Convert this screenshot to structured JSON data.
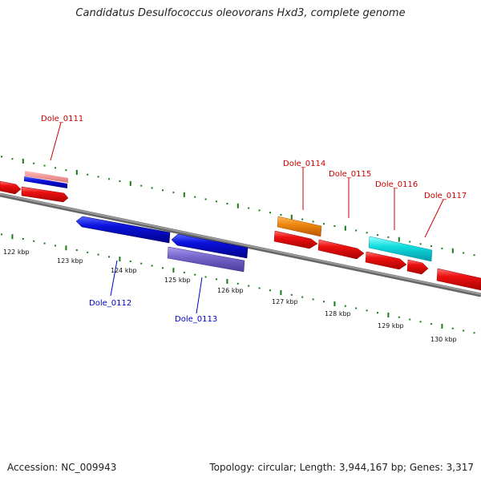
{
  "title": "Candidatus Desulfococcus oleovorans Hxd3, complete genome",
  "footer": {
    "accession": "Accession: NC_009943",
    "summary": "Topology: circular; Length: 3,944,167 bp; Genes: 3,317"
  },
  "colors": {
    "backbone": "#888888",
    "tick": "#1a7a1a",
    "forward_label": "#cc0000",
    "reverse_label": "#0000cc",
    "gene_red": "#ee1111",
    "gene_blue": "#0b12dd",
    "gene_purple": "#7766cc",
    "gene_orange": "#ee8811",
    "gene_cyan": "#11dddd",
    "gene_pink": "#ee8888"
  },
  "scale": {
    "top_track_ticks": "dotted",
    "bottom_track_ticks": "dotted",
    "kbp_labels": [
      "122 kbp",
      "123 kbp",
      "124 kbp",
      "125 kbp",
      "126 kbp",
      "127 kbp",
      "128 kbp",
      "129 kbp",
      "130 kbp"
    ]
  },
  "genes": {
    "forward": [
      "Dole_0111",
      "Dole_0114",
      "Dole_0115",
      "Dole_0116",
      "Dole_0117"
    ],
    "reverse": [
      "Dole_0112",
      "Dole_0113"
    ]
  }
}
